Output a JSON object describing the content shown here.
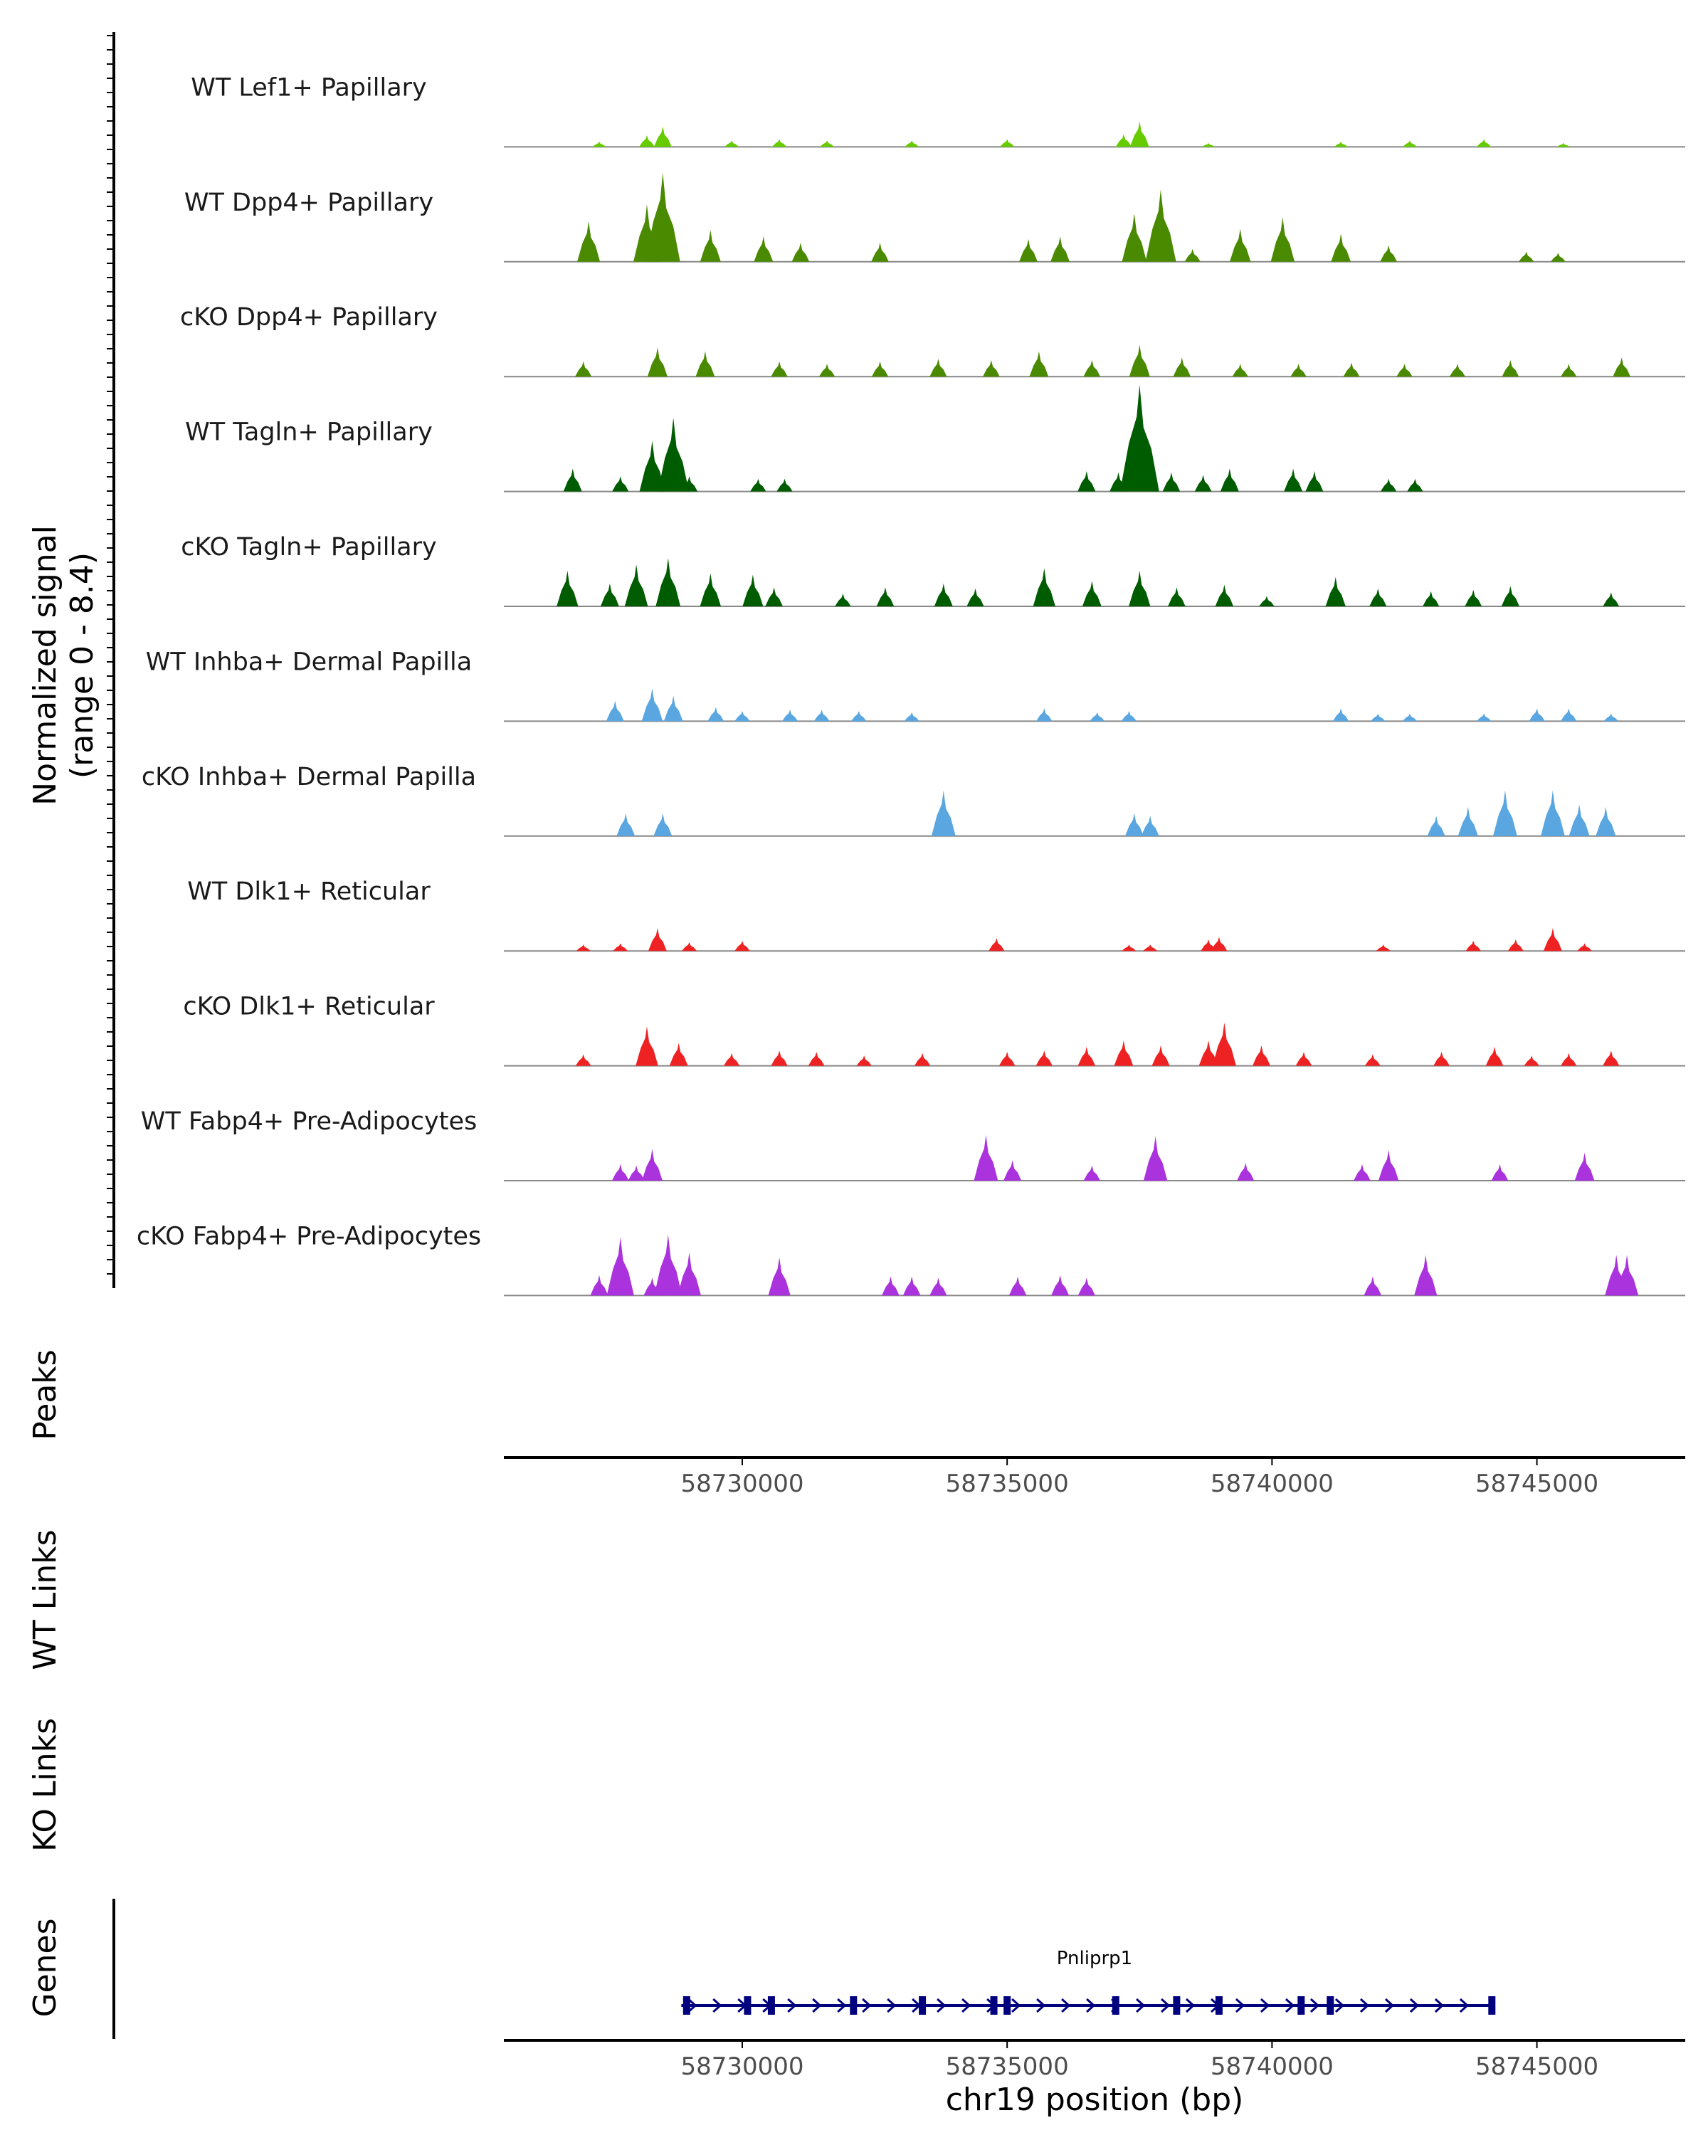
{
  "chart_data": {
    "type": "area",
    "title": "",
    "xlabel": "chr19 position (bp)",
    "ylabel": "Normalized signal",
    "ylabel_range": "(range 0 - 8.4)",
    "xlim": [
      58725500,
      58747800
    ],
    "ylim": [
      0,
      8.4
    ],
    "x_ticks": [
      58730000,
      58735000,
      58740000,
      58745000
    ],
    "x_tick_labels": [
      "58730000",
      "58735000",
      "58740000",
      "58745000"
    ],
    "colors": {
      "lef1": "#66cc00",
      "dpp4": "#4a8a00",
      "tagln": "#005c00",
      "inhba": "#5aa6e0",
      "dlk1": "#ee2222",
      "fabp4": "#aa33dd",
      "gene": "#00007f",
      "baseline": "#888888",
      "axis": "#000000"
    },
    "tracks": [
      {
        "name": "WT Lef1+ Papillary",
        "color_key": "lef1",
        "peaks": [
          [
            58728500,
            1.6
          ],
          [
            58728200,
            0.9
          ],
          [
            58727300,
            0.4
          ],
          [
            58729800,
            0.5
          ],
          [
            58730700,
            0.6
          ],
          [
            58731600,
            0.5
          ],
          [
            58733200,
            0.5
          ],
          [
            58735000,
            0.6
          ],
          [
            58737500,
            2.0
          ],
          [
            58737200,
            1.0
          ],
          [
            58738800,
            0.3
          ],
          [
            58741300,
            0.4
          ],
          [
            58742600,
            0.5
          ],
          [
            58744000,
            0.6
          ],
          [
            58745500,
            0.3
          ]
        ]
      },
      {
        "name": "WT Dpp4+ Papillary",
        "color_key": "dpp4",
        "peaks": [
          [
            58727100,
            3.2
          ],
          [
            58728500,
            7.0
          ],
          [
            58728200,
            4.5
          ],
          [
            58729400,
            2.5
          ],
          [
            58730400,
            2.0
          ],
          [
            58731100,
            1.5
          ],
          [
            58732600,
            1.5
          ],
          [
            58735400,
            1.8
          ],
          [
            58736000,
            2.0
          ],
          [
            58737400,
            3.8
          ],
          [
            58737900,
            5.7
          ],
          [
            58738500,
            1.0
          ],
          [
            58739400,
            2.6
          ],
          [
            58740200,
            3.5
          ],
          [
            58741300,
            2.2
          ],
          [
            58742200,
            1.3
          ],
          [
            58744800,
            0.8
          ],
          [
            58745400,
            0.7
          ]
        ]
      },
      {
        "name": "cKO Dpp4+ Papillary",
        "color_key": "dpp4",
        "peaks": [
          [
            58727000,
            1.2
          ],
          [
            58728400,
            2.3
          ],
          [
            58729300,
            2.0
          ],
          [
            58730700,
            1.2
          ],
          [
            58731600,
            1.0
          ],
          [
            58732600,
            1.2
          ],
          [
            58733700,
            1.4
          ],
          [
            58734700,
            1.3
          ],
          [
            58735600,
            2.0
          ],
          [
            58736600,
            1.3
          ],
          [
            58737500,
            2.5
          ],
          [
            58738300,
            1.5
          ],
          [
            58739400,
            1.0
          ],
          [
            58740500,
            1.0
          ],
          [
            58741500,
            1.1
          ],
          [
            58742500,
            1.0
          ],
          [
            58743500,
            1.0
          ],
          [
            58744500,
            1.3
          ],
          [
            58745600,
            1.0
          ],
          [
            58746600,
            1.5
          ]
        ]
      },
      {
        "name": "WT Tagln+ Papillary",
        "color_key": "tagln",
        "peaks": [
          [
            58726800,
            1.8
          ],
          [
            58727700,
            1.2
          ],
          [
            58728300,
            4.0
          ],
          [
            58728700,
            5.8
          ],
          [
            58729000,
            1.2
          ],
          [
            58730300,
            1.0
          ],
          [
            58730800,
            1.0
          ],
          [
            58736500,
            1.6
          ],
          [
            58737100,
            1.5
          ],
          [
            58737500,
            8.4
          ],
          [
            58738100,
            1.5
          ],
          [
            58738700,
            1.3
          ],
          [
            58739200,
            1.8
          ],
          [
            58740400,
            1.8
          ],
          [
            58740800,
            1.6
          ],
          [
            58742200,
            1.0
          ],
          [
            58742700,
            1.0
          ]
        ]
      },
      {
        "name": "cKO Tagln+ Papillary",
        "color_key": "tagln",
        "peaks": [
          [
            58726700,
            2.8
          ],
          [
            58727500,
            1.8
          ],
          [
            58728000,
            3.3
          ],
          [
            58728600,
            3.8
          ],
          [
            58729400,
            2.6
          ],
          [
            58730200,
            2.5
          ],
          [
            58730600,
            1.5
          ],
          [
            58731900,
            1.0
          ],
          [
            58732700,
            1.5
          ],
          [
            58733800,
            1.8
          ],
          [
            58734400,
            1.4
          ],
          [
            58735700,
            3.0
          ],
          [
            58736600,
            2.0
          ],
          [
            58737500,
            2.8
          ],
          [
            58738200,
            1.5
          ],
          [
            58739100,
            1.7
          ],
          [
            58739900,
            0.8
          ],
          [
            58741200,
            2.3
          ],
          [
            58742000,
            1.4
          ],
          [
            58743000,
            1.2
          ],
          [
            58743800,
            1.3
          ],
          [
            58744500,
            1.6
          ],
          [
            58746400,
            1.1
          ]
        ]
      },
      {
        "name": "WT Inhba+ Dermal Papilla",
        "color_key": "inhba",
        "peaks": [
          [
            58727600,
            1.6
          ],
          [
            58728300,
            2.6
          ],
          [
            58728700,
            2.0
          ],
          [
            58729500,
            1.1
          ],
          [
            58730000,
            0.8
          ],
          [
            58730900,
            0.9
          ],
          [
            58731500,
            0.9
          ],
          [
            58732200,
            0.8
          ],
          [
            58733200,
            0.7
          ],
          [
            58735700,
            1.0
          ],
          [
            58736700,
            0.7
          ],
          [
            58737300,
            0.8
          ],
          [
            58741300,
            1.0
          ],
          [
            58742000,
            0.6
          ],
          [
            58742600,
            0.6
          ],
          [
            58744000,
            0.6
          ],
          [
            58745000,
            1.0
          ],
          [
            58745600,
            1.0
          ],
          [
            58746400,
            0.6
          ]
        ]
      },
      {
        "name": "cKO Inhba+ Dermal Papilla",
        "color_key": "inhba",
        "peaks": [
          [
            58727800,
            1.8
          ],
          [
            58728500,
            1.8
          ],
          [
            58733800,
            3.6
          ],
          [
            58737400,
            1.8
          ],
          [
            58737700,
            1.6
          ],
          [
            58743100,
            1.6
          ],
          [
            58743700,
            2.3
          ],
          [
            58744400,
            3.6
          ],
          [
            58745300,
            3.6
          ],
          [
            58745800,
            2.5
          ],
          [
            58746300,
            2.3
          ]
        ]
      },
      {
        "name": "WT Dlk1+ Reticular",
        "color_key": "dlk1",
        "peaks": [
          [
            58727000,
            0.5
          ],
          [
            58727700,
            0.6
          ],
          [
            58728400,
            1.8
          ],
          [
            58729000,
            0.7
          ],
          [
            58730000,
            0.8
          ],
          [
            58734800,
            1.0
          ],
          [
            58737300,
            0.5
          ],
          [
            58737700,
            0.5
          ],
          [
            58738800,
            0.9
          ],
          [
            58739000,
            1.1
          ],
          [
            58742100,
            0.5
          ],
          [
            58743800,
            0.8
          ],
          [
            58744600,
            0.9
          ],
          [
            58745300,
            1.8
          ],
          [
            58745900,
            0.6
          ]
        ]
      },
      {
        "name": "cKO Dlk1+ Reticular",
        "color_key": "dlk1",
        "peaks": [
          [
            58727000,
            0.9
          ],
          [
            58728200,
            3.1
          ],
          [
            58728800,
            1.8
          ],
          [
            58729800,
            1.0
          ],
          [
            58730700,
            1.2
          ],
          [
            58731400,
            1.1
          ],
          [
            58732300,
            0.8
          ],
          [
            58733400,
            1.0
          ],
          [
            58735000,
            1.1
          ],
          [
            58735700,
            1.2
          ],
          [
            58736500,
            1.5
          ],
          [
            58737200,
            2.0
          ],
          [
            58737900,
            1.6
          ],
          [
            58738800,
            2.0
          ],
          [
            58739100,
            3.4
          ],
          [
            58739800,
            1.6
          ],
          [
            58740600,
            1.1
          ],
          [
            58741900,
            0.9
          ],
          [
            58743200,
            1.1
          ],
          [
            58744200,
            1.5
          ],
          [
            58744900,
            0.8
          ],
          [
            58745600,
            1.0
          ],
          [
            58746400,
            1.2
          ]
        ]
      },
      {
        "name": "WT Fabp4+ Pre-Adipocytes",
        "color_key": "fabp4",
        "peaks": [
          [
            58727700,
            1.3
          ],
          [
            58728000,
            1.2
          ],
          [
            58728300,
            2.5
          ],
          [
            58734600,
            3.6
          ],
          [
            58735100,
            1.6
          ],
          [
            58736600,
            1.2
          ],
          [
            58737800,
            3.5
          ],
          [
            58739500,
            1.4
          ],
          [
            58741700,
            1.3
          ],
          [
            58742200,
            2.4
          ],
          [
            58744300,
            1.3
          ],
          [
            58745900,
            2.2
          ]
        ]
      },
      {
        "name": "cKO Fabp4+ Pre-Adipocytes",
        "color_key": "fabp4",
        "peaks": [
          [
            58727300,
            1.6
          ],
          [
            58727700,
            4.6
          ],
          [
            58728300,
            1.4
          ],
          [
            58728600,
            4.8
          ],
          [
            58729000,
            3.4
          ],
          [
            58730700,
            3.0
          ],
          [
            58732800,
            1.5
          ],
          [
            58733200,
            1.5
          ],
          [
            58733700,
            1.4
          ],
          [
            58735200,
            1.5
          ],
          [
            58736000,
            1.6
          ],
          [
            58736500,
            1.4
          ],
          [
            58741900,
            1.5
          ],
          [
            58742900,
            3.2
          ],
          [
            58746500,
            3.2
          ],
          [
            58746700,
            3.2
          ]
        ]
      }
    ],
    "panels": {
      "peaks": "Peaks",
      "wt_links": "WT Links",
      "ko_links": "KO Links",
      "genes": "Genes"
    },
    "gene": {
      "name": "Pnliprp1",
      "start": 58728850,
      "end": 58744150,
      "strand": "+",
      "exons": [
        58728950,
        58730100,
        58730550,
        58732100,
        58733400,
        58734750,
        58735000,
        58737050,
        58738200,
        58739000,
        58740550,
        58741100,
        58744150
      ]
    }
  }
}
